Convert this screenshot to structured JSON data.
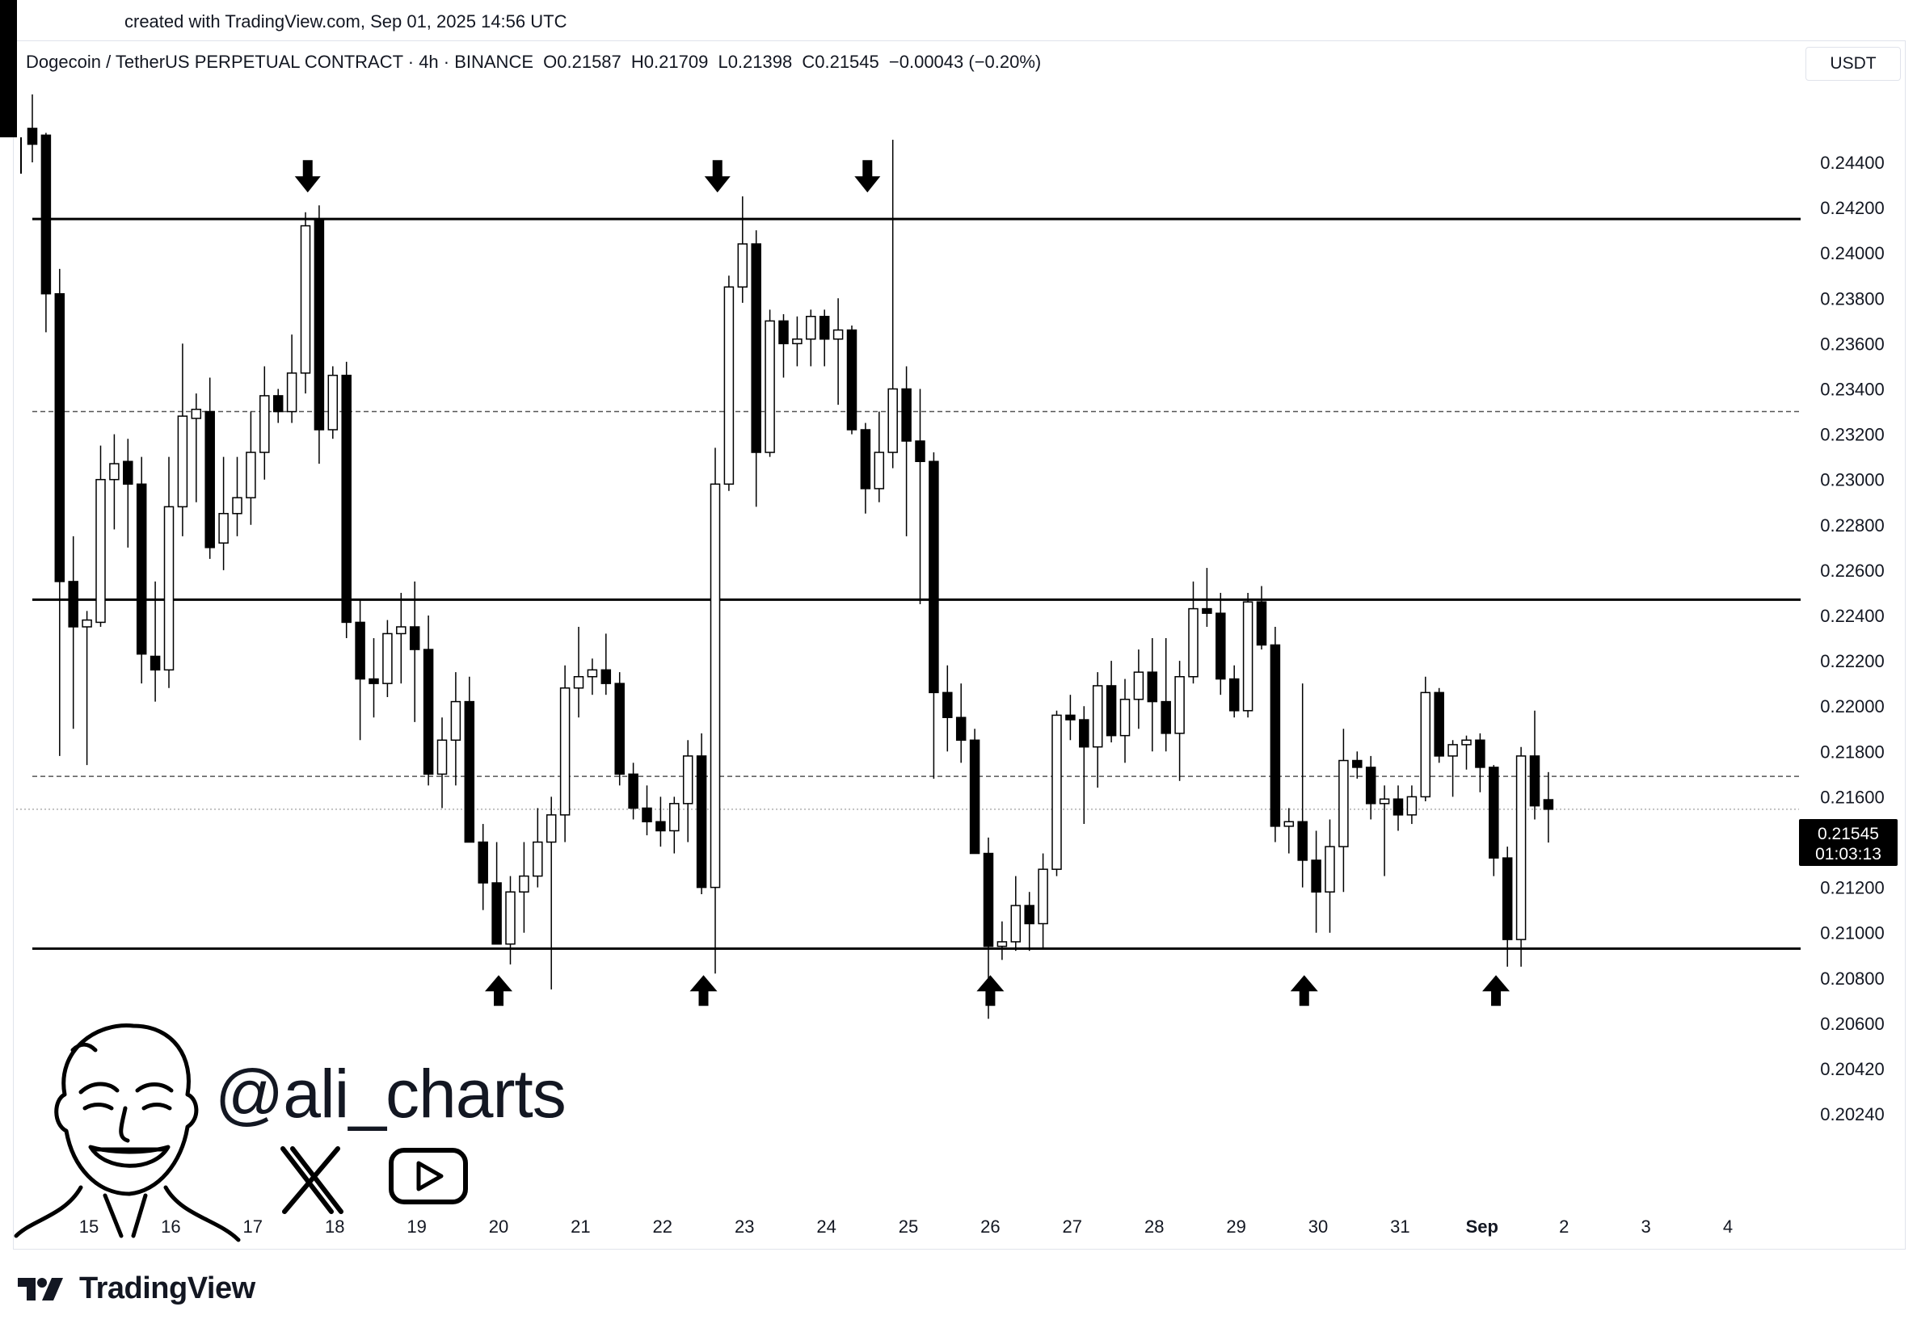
{
  "header": {
    "created": "created with TradingView.com, Sep 01, 2025 14:56 UTC"
  },
  "legend": {
    "symbol": "Dogecoin / TetherUS PERPETUAL CONTRACT · 4h · BINANCE",
    "open": "O0.21587",
    "high": "H0.21709",
    "low": "L0.21398",
    "close": "C0.21545",
    "change": "−0.00043 (−0.20%)"
  },
  "currency": "USDT",
  "price_tag": {
    "price": "0.21545",
    "countdown": "01:03:13"
  },
  "watermark": {
    "handle": "@ali_charts",
    "x_icon": "x-logo-icon",
    "youtube_icon": "youtube-play-icon"
  },
  "brand": {
    "name": "TradingView",
    "icon": "tradingview-logo-icon"
  },
  "colors": {
    "bull_fill": "#ffffff",
    "bear_fill": "#000000",
    "wick": "#000000",
    "grid": "#f0f3fa"
  },
  "chart_data": {
    "type": "candlestick",
    "title": "Dogecoin / TetherUS PERPETUAL CONTRACT · 4h · BINANCE",
    "y_ticks": [
      "0.24400",
      "0.24200",
      "0.24000",
      "0.23800",
      "0.23600",
      "0.23400",
      "0.23200",
      "0.23000",
      "0.22800",
      "0.22600",
      "0.22400",
      "0.22200",
      "0.22000",
      "0.21800",
      "0.21600",
      "0.21400",
      "0.21200",
      "0.21000",
      "0.20800",
      "0.20600",
      "0.20420",
      "0.20240"
    ],
    "x_ticks": [
      "15",
      "16",
      "17",
      "18",
      "19",
      "20",
      "21",
      "22",
      "23",
      "24",
      "25",
      "26",
      "27",
      "28",
      "29",
      "30",
      "31",
      "Sep",
      "2",
      "3",
      "4"
    ],
    "horizontal_levels": [
      {
        "price": 0.2415,
        "style": "solid"
      },
      {
        "price": 0.2247,
        "style": "solid"
      },
      {
        "price": 0.2093,
        "style": "solid"
      },
      {
        "price": 0.233,
        "style": "dashed"
      },
      {
        "price": 0.2169,
        "style": "dashed"
      },
      {
        "price": 0.21545,
        "style": "dotted"
      }
    ],
    "markers_down": [
      {
        "day": 17.67,
        "price": 0.2426
      },
      {
        "day": 22.67,
        "price": 0.2426
      },
      {
        "day": 24.5,
        "price": 0.2426
      }
    ],
    "markers_up": [
      {
        "day": 20.0,
        "price": 0.2082
      },
      {
        "day": 22.5,
        "price": 0.2082
      },
      {
        "day": 26.0,
        "price": 0.2082
      },
      {
        "day": 29.83,
        "price": 0.2082
      },
      {
        "day": 32.17,
        "price": 0.2082
      }
    ],
    "candles": [
      {
        "o": 0.2455,
        "h": 0.247,
        "l": 0.244,
        "c": 0.2448
      },
      {
        "o": 0.2452,
        "h": 0.2453,
        "l": 0.2365,
        "c": 0.2382
      },
      {
        "o": 0.2382,
        "h": 0.2393,
        "l": 0.2178,
        "c": 0.2255
      },
      {
        "o": 0.2255,
        "h": 0.2275,
        "l": 0.219,
        "c": 0.2235
      },
      {
        "o": 0.2235,
        "h": 0.2242,
        "l": 0.2174,
        "c": 0.2238
      },
      {
        "o": 0.2237,
        "h": 0.2315,
        "l": 0.2235,
        "c": 0.23
      },
      {
        "o": 0.23,
        "h": 0.232,
        "l": 0.2278,
        "c": 0.2307
      },
      {
        "o": 0.2308,
        "h": 0.2318,
        "l": 0.227,
        "c": 0.2298
      },
      {
        "o": 0.2298,
        "h": 0.231,
        "l": 0.221,
        "c": 0.2223
      },
      {
        "o": 0.2222,
        "h": 0.2255,
        "l": 0.2202,
        "c": 0.2216
      },
      {
        "o": 0.2216,
        "h": 0.231,
        "l": 0.2208,
        "c": 0.2288
      },
      {
        "o": 0.2288,
        "h": 0.236,
        "l": 0.2275,
        "c": 0.2328
      },
      {
        "o": 0.2327,
        "h": 0.2338,
        "l": 0.229,
        "c": 0.2331
      },
      {
        "o": 0.233,
        "h": 0.2345,
        "l": 0.2265,
        "c": 0.227
      },
      {
        "o": 0.2272,
        "h": 0.231,
        "l": 0.226,
        "c": 0.2285
      },
      {
        "o": 0.2285,
        "h": 0.231,
        "l": 0.2275,
        "c": 0.2292
      },
      {
        "o": 0.2292,
        "h": 0.233,
        "l": 0.228,
        "c": 0.2312
      },
      {
        "o": 0.2312,
        "h": 0.235,
        "l": 0.23,
        "c": 0.2337
      },
      {
        "o": 0.2337,
        "h": 0.234,
        "l": 0.2325,
        "c": 0.233
      },
      {
        "o": 0.233,
        "h": 0.2364,
        "l": 0.2325,
        "c": 0.2347
      },
      {
        "o": 0.2347,
        "h": 0.2418,
        "l": 0.2338,
        "c": 0.2412
      },
      {
        "o": 0.2415,
        "h": 0.2421,
        "l": 0.2307,
        "c": 0.2322
      },
      {
        "o": 0.2322,
        "h": 0.235,
        "l": 0.2318,
        "c": 0.2346
      },
      {
        "o": 0.2346,
        "h": 0.2352,
        "l": 0.223,
        "c": 0.2237
      },
      {
        "o": 0.2237,
        "h": 0.2247,
        "l": 0.2185,
        "c": 0.2212
      },
      {
        "o": 0.2212,
        "h": 0.223,
        "l": 0.2195,
        "c": 0.221
      },
      {
        "o": 0.221,
        "h": 0.2238,
        "l": 0.2204,
        "c": 0.2232
      },
      {
        "o": 0.2232,
        "h": 0.225,
        "l": 0.221,
        "c": 0.2235
      },
      {
        "o": 0.2235,
        "h": 0.2255,
        "l": 0.2193,
        "c": 0.2225
      },
      {
        "o": 0.2225,
        "h": 0.224,
        "l": 0.2165,
        "c": 0.217
      },
      {
        "o": 0.217,
        "h": 0.2195,
        "l": 0.2155,
        "c": 0.2185
      },
      {
        "o": 0.2185,
        "h": 0.2215,
        "l": 0.2165,
        "c": 0.2202
      },
      {
        "o": 0.2202,
        "h": 0.2213,
        "l": 0.214,
        "c": 0.214
      },
      {
        "o": 0.214,
        "h": 0.2148,
        "l": 0.211,
        "c": 0.2122
      },
      {
        "o": 0.2122,
        "h": 0.214,
        "l": 0.2095,
        "c": 0.2095
      },
      {
        "o": 0.2095,
        "h": 0.2125,
        "l": 0.2086,
        "c": 0.2118
      },
      {
        "o": 0.2118,
        "h": 0.214,
        "l": 0.21,
        "c": 0.2125
      },
      {
        "o": 0.2125,
        "h": 0.2155,
        "l": 0.212,
        "c": 0.214
      },
      {
        "o": 0.214,
        "h": 0.216,
        "l": 0.2075,
        "c": 0.2152
      },
      {
        "o": 0.2152,
        "h": 0.2218,
        "l": 0.214,
        "c": 0.2208
      },
      {
        "o": 0.2208,
        "h": 0.2235,
        "l": 0.2195,
        "c": 0.2213
      },
      {
        "o": 0.2213,
        "h": 0.2221,
        "l": 0.2205,
        "c": 0.2216
      },
      {
        "o": 0.2216,
        "h": 0.2232,
        "l": 0.2205,
        "c": 0.221
      },
      {
        "o": 0.221,
        "h": 0.2215,
        "l": 0.2165,
        "c": 0.217
      },
      {
        "o": 0.217,
        "h": 0.2175,
        "l": 0.215,
        "c": 0.2155
      },
      {
        "o": 0.2155,
        "h": 0.2165,
        "l": 0.2143,
        "c": 0.2149
      },
      {
        "o": 0.2149,
        "h": 0.216,
        "l": 0.2138,
        "c": 0.2145
      },
      {
        "o": 0.2145,
        "h": 0.216,
        "l": 0.2135,
        "c": 0.2157
      },
      {
        "o": 0.2157,
        "h": 0.2185,
        "l": 0.214,
        "c": 0.2178
      },
      {
        "o": 0.2178,
        "h": 0.2188,
        "l": 0.2117,
        "c": 0.212
      },
      {
        "o": 0.212,
        "h": 0.2314,
        "l": 0.2082,
        "c": 0.2298
      },
      {
        "o": 0.2298,
        "h": 0.239,
        "l": 0.2295,
        "c": 0.2385
      },
      {
        "o": 0.2385,
        "h": 0.2425,
        "l": 0.2378,
        "c": 0.2404
      },
      {
        "o": 0.2404,
        "h": 0.241,
        "l": 0.2288,
        "c": 0.2312
      },
      {
        "o": 0.2312,
        "h": 0.2375,
        "l": 0.231,
        "c": 0.237
      },
      {
        "o": 0.237,
        "h": 0.2373,
        "l": 0.2345,
        "c": 0.236
      },
      {
        "o": 0.236,
        "h": 0.2372,
        "l": 0.235,
        "c": 0.2362
      },
      {
        "o": 0.2362,
        "h": 0.2375,
        "l": 0.235,
        "c": 0.2372
      },
      {
        "o": 0.2372,
        "h": 0.2375,
        "l": 0.235,
        "c": 0.2362
      },
      {
        "o": 0.2362,
        "h": 0.238,
        "l": 0.2333,
        "c": 0.2366
      },
      {
        "o": 0.2366,
        "h": 0.2368,
        "l": 0.232,
        "c": 0.2322
      },
      {
        "o": 0.2322,
        "h": 0.2325,
        "l": 0.2285,
        "c": 0.2296
      },
      {
        "o": 0.2296,
        "h": 0.233,
        "l": 0.229,
        "c": 0.2312
      },
      {
        "o": 0.2312,
        "h": 0.245,
        "l": 0.2305,
        "c": 0.234
      },
      {
        "o": 0.234,
        "h": 0.235,
        "l": 0.2275,
        "c": 0.2317
      },
      {
        "o": 0.2317,
        "h": 0.234,
        "l": 0.2245,
        "c": 0.2308
      },
      {
        "o": 0.2308,
        "h": 0.2312,
        "l": 0.2168,
        "c": 0.2206
      },
      {
        "o": 0.2206,
        "h": 0.2218,
        "l": 0.218,
        "c": 0.2195
      },
      {
        "o": 0.2195,
        "h": 0.221,
        "l": 0.2175,
        "c": 0.2185
      },
      {
        "o": 0.2185,
        "h": 0.219,
        "l": 0.2135,
        "c": 0.2135
      },
      {
        "o": 0.2135,
        "h": 0.2142,
        "l": 0.2062,
        "c": 0.2094
      },
      {
        "o": 0.2094,
        "h": 0.2105,
        "l": 0.2088,
        "c": 0.2096
      },
      {
        "o": 0.2096,
        "h": 0.2125,
        "l": 0.2092,
        "c": 0.2112
      },
      {
        "o": 0.2112,
        "h": 0.2118,
        "l": 0.2092,
        "c": 0.2104
      },
      {
        "o": 0.2104,
        "h": 0.2135,
        "l": 0.2093,
        "c": 0.2128
      },
      {
        "o": 0.2128,
        "h": 0.2198,
        "l": 0.2125,
        "c": 0.2196
      },
      {
        "o": 0.2196,
        "h": 0.2205,
        "l": 0.2185,
        "c": 0.2194
      },
      {
        "o": 0.2194,
        "h": 0.22,
        "l": 0.2148,
        "c": 0.2182
      },
      {
        "o": 0.2182,
        "h": 0.2215,
        "l": 0.2164,
        "c": 0.2209
      },
      {
        "o": 0.2209,
        "h": 0.222,
        "l": 0.2184,
        "c": 0.2187
      },
      {
        "o": 0.2187,
        "h": 0.2212,
        "l": 0.2175,
        "c": 0.2203
      },
      {
        "o": 0.2203,
        "h": 0.2225,
        "l": 0.219,
        "c": 0.2215
      },
      {
        "o": 0.2215,
        "h": 0.223,
        "l": 0.218,
        "c": 0.2202
      },
      {
        "o": 0.2202,
        "h": 0.223,
        "l": 0.218,
        "c": 0.2188
      },
      {
        "o": 0.2188,
        "h": 0.222,
        "l": 0.2167,
        "c": 0.2213
      },
      {
        "o": 0.2213,
        "h": 0.2255,
        "l": 0.221,
        "c": 0.2243
      },
      {
        "o": 0.2243,
        "h": 0.2261,
        "l": 0.2235,
        "c": 0.2241
      },
      {
        "o": 0.2241,
        "h": 0.225,
        "l": 0.2205,
        "c": 0.2212
      },
      {
        "o": 0.2212,
        "h": 0.2218,
        "l": 0.2195,
        "c": 0.2198
      },
      {
        "o": 0.2198,
        "h": 0.225,
        "l": 0.2195,
        "c": 0.2246
      },
      {
        "o": 0.2246,
        "h": 0.2253,
        "l": 0.2225,
        "c": 0.2227
      },
      {
        "o": 0.2227,
        "h": 0.2235,
        "l": 0.214,
        "c": 0.2147
      },
      {
        "o": 0.2147,
        "h": 0.2155,
        "l": 0.2135,
        "c": 0.2149
      },
      {
        "o": 0.2149,
        "h": 0.221,
        "l": 0.212,
        "c": 0.2132
      },
      {
        "o": 0.2132,
        "h": 0.2145,
        "l": 0.21,
        "c": 0.2118
      },
      {
        "o": 0.2118,
        "h": 0.215,
        "l": 0.21,
        "c": 0.2138
      },
      {
        "o": 0.2138,
        "h": 0.219,
        "l": 0.2118,
        "c": 0.2176
      },
      {
        "o": 0.2176,
        "h": 0.218,
        "l": 0.2168,
        "c": 0.2173
      },
      {
        "o": 0.2173,
        "h": 0.2178,
        "l": 0.215,
        "c": 0.2157
      },
      {
        "o": 0.2157,
        "h": 0.2165,
        "l": 0.2125,
        "c": 0.2159
      },
      {
        "o": 0.2159,
        "h": 0.2165,
        "l": 0.2145,
        "c": 0.2152
      },
      {
        "o": 0.2152,
        "h": 0.2165,
        "l": 0.2148,
        "c": 0.216
      },
      {
        "o": 0.216,
        "h": 0.2213,
        "l": 0.2158,
        "c": 0.2206
      },
      {
        "o": 0.2206,
        "h": 0.2208,
        "l": 0.2175,
        "c": 0.2178
      },
      {
        "o": 0.2178,
        "h": 0.2185,
        "l": 0.216,
        "c": 0.2183
      },
      {
        "o": 0.2183,
        "h": 0.2187,
        "l": 0.2172,
        "c": 0.2185
      },
      {
        "o": 0.2185,
        "h": 0.2188,
        "l": 0.2162,
        "c": 0.2173
      },
      {
        "o": 0.2173,
        "h": 0.2174,
        "l": 0.2125,
        "c": 0.2133
      },
      {
        "o": 0.2133,
        "h": 0.2138,
        "l": 0.2085,
        "c": 0.2097
      },
      {
        "o": 0.2097,
        "h": 0.2182,
        "l": 0.2085,
        "c": 0.2178
      },
      {
        "o": 0.2178,
        "h": 0.2198,
        "l": 0.215,
        "c": 0.2156
      },
      {
        "o": 0.21587,
        "h": 0.21709,
        "l": 0.21398,
        "c": 0.21545
      }
    ]
  }
}
